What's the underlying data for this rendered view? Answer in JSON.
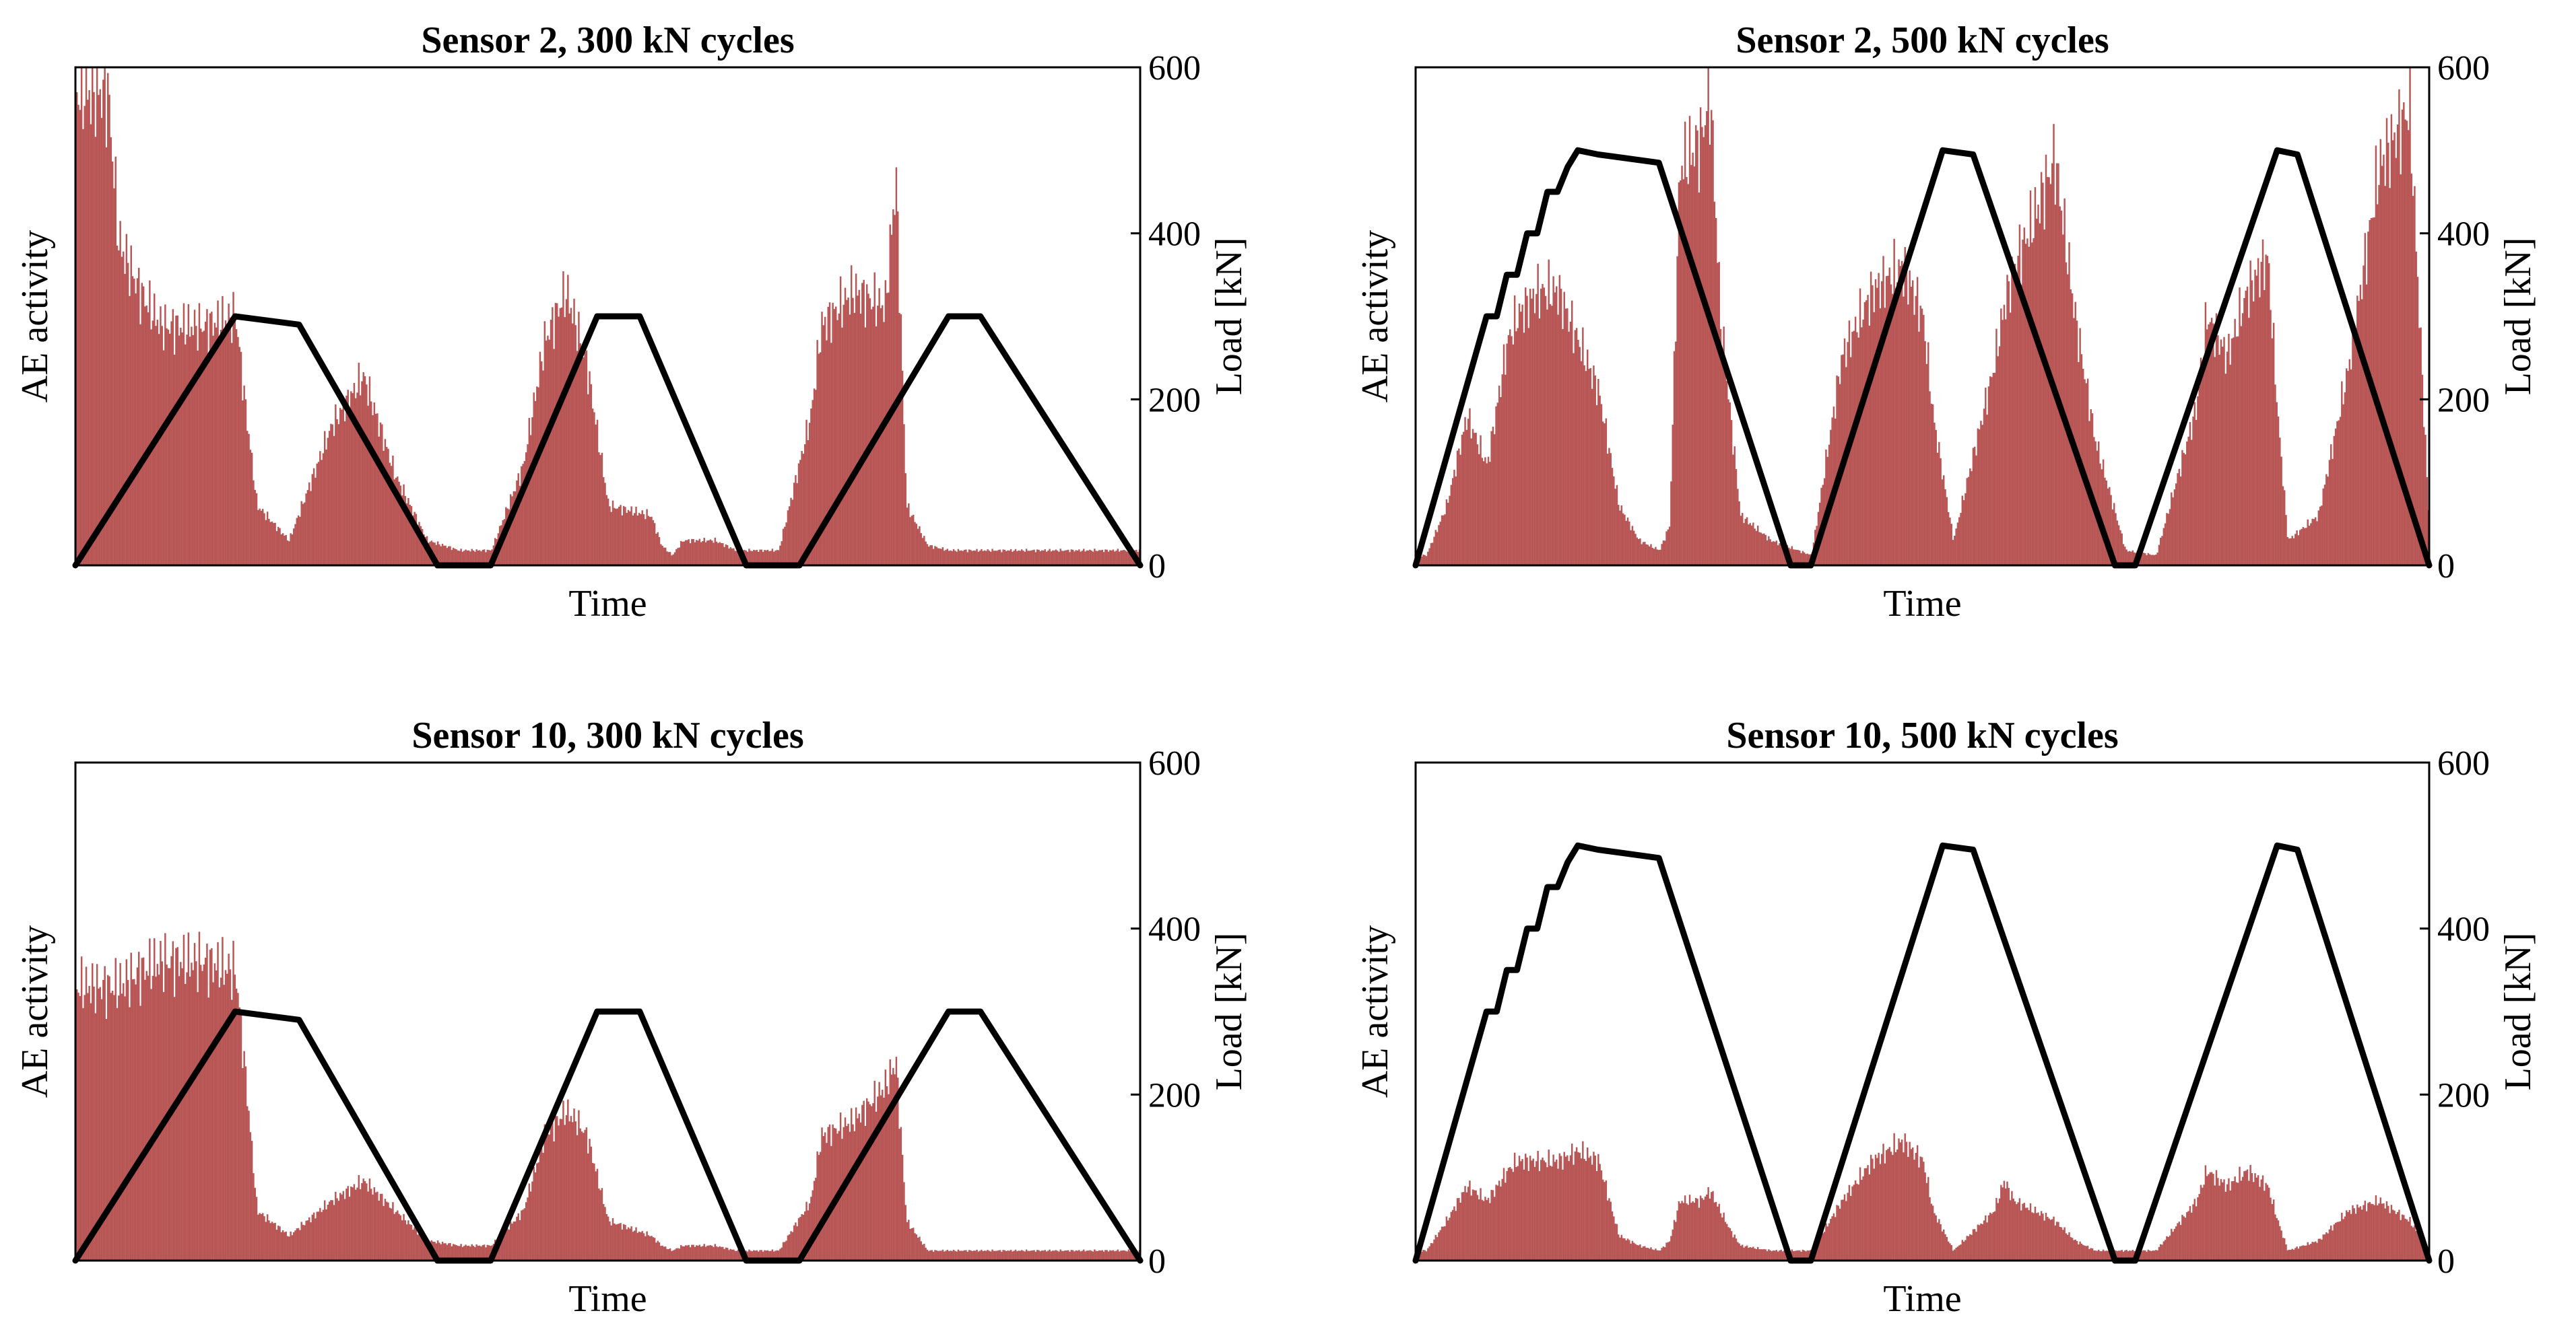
{
  "colors": {
    "ae_bars": "#b85555",
    "load_line": "#000000",
    "background": "#ffffff",
    "axes": "#000000"
  },
  "chart_data": [
    {
      "type": "bar+line",
      "title": "Sensor 2, 300 kN cycles",
      "xlabel": "Time",
      "ylabel_left": "AE activity",
      "ylabel_right": "Load [kN]",
      "right_ylim": [
        0,
        600
      ],
      "right_yticks": [
        "0",
        "200",
        "400",
        "600"
      ],
      "x_range": [
        0,
        100
      ],
      "load": {
        "x": [
          0,
          15,
          21,
          34,
          39,
          49,
          53,
          63,
          68,
          82,
          85,
          100
        ],
        "y": [
          0,
          300,
          290,
          0,
          0,
          300,
          300,
          0,
          0,
          300,
          300,
          0
        ]
      },
      "ae_activity": {
        "x": [
          3,
          4,
          6,
          8,
          12,
          15,
          16,
          17,
          20,
          24,
          27,
          30,
          33,
          36,
          39,
          42,
          44,
          46,
          47,
          48,
          50,
          54,
          55,
          56,
          57,
          58,
          60,
          62,
          66,
          69,
          70,
          73,
          76,
          77,
          78,
          80,
          82,
          84,
          100
        ],
        "y": [
          0.95,
          0.65,
          0.55,
          0.48,
          0.48,
          0.5,
          0.3,
          0.12,
          0.05,
          0.28,
          0.38,
          0.18,
          0.05,
          0.03,
          0.03,
          0.2,
          0.45,
          0.55,
          0.48,
          0.4,
          0.12,
          0.1,
          0.04,
          0.02,
          0.05,
          0.05,
          0.05,
          0.03,
          0.03,
          0.3,
          0.48,
          0.55,
          0.52,
          0.78,
          0.12,
          0.04,
          0.03,
          0.03,
          0.03
        ]
      }
    },
    {
      "type": "bar+line",
      "title": "Sensor 2, 500 kN cycles",
      "xlabel": "Time",
      "ylabel_left": "AE activity",
      "ylabel_right": "Load [kN]",
      "right_ylim": [
        0,
        600
      ],
      "right_yticks": [
        "0",
        "200",
        "400",
        "600"
      ],
      "x_range": [
        0,
        100
      ],
      "load": {
        "x": [
          0,
          7,
          8,
          9,
          10,
          11,
          12,
          13,
          14,
          15,
          16,
          18,
          24,
          37,
          39,
          52,
          55,
          69,
          71,
          85,
          87,
          100
        ],
        "y": [
          0,
          300,
          300,
          350,
          350,
          400,
          400,
          450,
          450,
          480,
          500,
          495,
          485,
          0,
          0,
          500,
          495,
          0,
          0,
          500,
          495,
          0
        ]
      },
      "ae_activity": {
        "x": [
          1,
          3,
          5,
          7,
          9,
          10,
          12,
          14,
          16,
          18,
          20,
          22,
          24,
          25,
          26,
          28,
          29,
          30,
          31,
          32,
          35,
          39,
          42,
          45,
          48,
          50,
          51,
          53,
          57,
          58,
          59,
          61,
          63,
          65,
          67,
          70,
          73,
          77,
          78,
          80,
          82,
          84,
          85,
          86,
          89,
          92,
          95,
          98,
          100
        ],
        "y": [
          0.02,
          0.12,
          0.3,
          0.2,
          0.45,
          0.5,
          0.55,
          0.55,
          0.45,
          0.35,
          0.12,
          0.05,
          0.03,
          0.08,
          0.8,
          0.85,
          0.95,
          0.5,
          0.3,
          0.1,
          0.05,
          0.02,
          0.42,
          0.55,
          0.6,
          0.5,
          0.3,
          0.05,
          0.4,
          0.52,
          0.6,
          0.7,
          0.82,
          0.5,
          0.25,
          0.03,
          0.02,
          0.32,
          0.5,
          0.42,
          0.55,
          0.62,
          0.3,
          0.05,
          0.1,
          0.4,
          0.8,
          0.92,
          0.05
        ]
      }
    },
    {
      "type": "bar+line",
      "title": "Sensor 10, 300 kN cycles",
      "xlabel": "Time",
      "ylabel_left": "AE activity",
      "ylabel_right": "Load [kN]",
      "right_ylim": [
        0,
        600
      ],
      "right_yticks": [
        "0",
        "200",
        "400",
        "600"
      ],
      "x_range": [
        0,
        100
      ],
      "load": {
        "x": [
          0,
          15,
          21,
          34,
          39,
          49,
          53,
          63,
          68,
          82,
          85,
          100
        ],
        "y": [
          0,
          300,
          290,
          0,
          0,
          300,
          300,
          0,
          0,
          300,
          300,
          0
        ]
      },
      "ae_activity": {
        "x": [
          3,
          4,
          6,
          8,
          12,
          15,
          16,
          17,
          20,
          24,
          27,
          30,
          33,
          36,
          39,
          42,
          44,
          46,
          47,
          48,
          50,
          54,
          55,
          56,
          57,
          58,
          60,
          62,
          66,
          69,
          70,
          73,
          76,
          77,
          78,
          80,
          82,
          84,
          100
        ],
        "y": [
          0.55,
          0.55,
          0.58,
          0.6,
          0.6,
          0.58,
          0.35,
          0.1,
          0.05,
          0.12,
          0.16,
          0.1,
          0.04,
          0.03,
          0.03,
          0.1,
          0.25,
          0.3,
          0.28,
          0.25,
          0.08,
          0.05,
          0.03,
          0.02,
          0.03,
          0.03,
          0.03,
          0.02,
          0.02,
          0.12,
          0.25,
          0.28,
          0.35,
          0.4,
          0.08,
          0.02,
          0.02,
          0.02,
          0.02
        ]
      }
    },
    {
      "type": "bar+line",
      "title": "Sensor 10, 500 kN cycles",
      "xlabel": "Time",
      "ylabel_left": "AE activity",
      "ylabel_right": "Load [kN]",
      "right_ylim": [
        0,
        600
      ],
      "right_yticks": [
        "0",
        "200",
        "400",
        "600"
      ],
      "x_range": [
        0,
        100
      ],
      "load": {
        "x": [
          0,
          7,
          8,
          9,
          10,
          11,
          12,
          13,
          14,
          15,
          16,
          18,
          24,
          37,
          39,
          52,
          55,
          69,
          71,
          85,
          87,
          100
        ],
        "y": [
          0,
          300,
          300,
          350,
          350,
          400,
          400,
          450,
          450,
          480,
          500,
          495,
          485,
          0,
          0,
          500,
          495,
          0,
          0,
          500,
          495,
          0
        ]
      },
      "ae_activity": {
        "x": [
          1,
          3,
          5,
          7,
          9,
          10,
          12,
          14,
          16,
          18,
          20,
          22,
          24,
          25,
          26,
          28,
          29,
          30,
          31,
          32,
          35,
          39,
          42,
          45,
          48,
          50,
          51,
          53,
          57,
          58,
          59,
          61,
          63,
          65,
          67,
          70,
          73,
          77,
          78,
          80,
          82,
          84,
          85,
          86,
          89,
          92,
          95,
          98,
          100
        ],
        "y": [
          0.02,
          0.08,
          0.15,
          0.12,
          0.18,
          0.2,
          0.2,
          0.2,
          0.22,
          0.2,
          0.05,
          0.03,
          0.02,
          0.04,
          0.12,
          0.12,
          0.14,
          0.1,
          0.06,
          0.03,
          0.02,
          0.02,
          0.12,
          0.2,
          0.24,
          0.2,
          0.1,
          0.02,
          0.1,
          0.16,
          0.12,
          0.1,
          0.08,
          0.04,
          0.02,
          0.02,
          0.02,
          0.12,
          0.18,
          0.15,
          0.18,
          0.15,
          0.08,
          0.02,
          0.04,
          0.1,
          0.12,
          0.08,
          0.02
        ]
      }
    }
  ]
}
